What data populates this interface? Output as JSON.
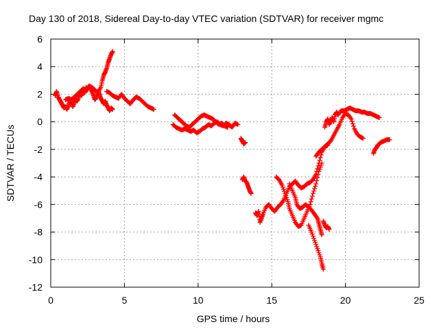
{
  "chart_data": {
    "type": "scatter",
    "title": "Day 130 of 2018, Sidereal Day-to-day VTEC variation (SDTVAR) for receiver mgmc",
    "xlabel": "GPS time / hours",
    "ylabel": "SDTVAR / TECUs",
    "xlim": [
      0,
      25
    ],
    "ylim": [
      -12,
      6
    ],
    "xticks": [
      0,
      5,
      10,
      15,
      20,
      25
    ],
    "yticks": [
      -12,
      -10,
      -8,
      -6,
      -4,
      -2,
      0,
      2,
      4,
      6
    ],
    "grid": true,
    "marker": "plus",
    "color": "#ff0000",
    "series": [
      {
        "points": [
          [
            0.3,
            1.9
          ],
          [
            0.4,
            2.2
          ],
          [
            0.5,
            1.8
          ],
          [
            0.6,
            1.6
          ],
          [
            0.7,
            1.4
          ],
          [
            0.8,
            1.2
          ],
          [
            0.9,
            1.0
          ],
          [
            1.0,
            1.1
          ],
          [
            1.1,
            0.9
          ],
          [
            1.2,
            1.2
          ],
          [
            1.3,
            1.5
          ],
          [
            1.4,
            1.3
          ],
          [
            1.5,
            1.1
          ],
          [
            1.6,
            1.4
          ],
          [
            1.7,
            1.6
          ],
          [
            1.8,
            1.5
          ],
          [
            1.9,
            1.8
          ],
          [
            2.0,
            2.1
          ],
          [
            2.1,
            1.9
          ],
          [
            2.2,
            2.3
          ],
          [
            2.3,
            2.1
          ],
          [
            2.4,
            2.5
          ],
          [
            2.5,
            2.3
          ],
          [
            2.6,
            2.6
          ],
          [
            2.7,
            2.4
          ],
          [
            2.8,
            2.2
          ],
          [
            2.9,
            1.9
          ],
          [
            3.0,
            1.6
          ],
          [
            3.1,
            1.8
          ],
          [
            3.2,
            2.2
          ],
          [
            3.3,
            2.0
          ],
          [
            3.4,
            1.7
          ],
          [
            3.5,
            1.5
          ],
          [
            3.6,
            1.3
          ],
          [
            3.7,
            1.5
          ],
          [
            3.8,
            1.2
          ],
          [
            3.9,
            1.0
          ],
          [
            4.0,
            0.8
          ],
          [
            4.1,
            1.0
          ],
          [
            4.2,
            0.9
          ]
        ]
      },
      {
        "points": [
          [
            1.0,
            1.6
          ],
          [
            1.2,
            1.7
          ],
          [
            1.4,
            1.6
          ],
          [
            1.6,
            1.8
          ],
          [
            1.8,
            2.0
          ],
          [
            2.0,
            2.2
          ],
          [
            2.2,
            2.4
          ],
          [
            2.4,
            2.3
          ],
          [
            2.6,
            2.6
          ],
          [
            2.8,
            2.5
          ],
          [
            3.0,
            2.3
          ],
          [
            3.2,
            2.1
          ],
          [
            3.4,
            2.5
          ],
          [
            3.5,
            3.0
          ],
          [
            3.6,
            3.4
          ],
          [
            3.7,
            3.6
          ],
          [
            3.8,
            3.9
          ],
          [
            3.9,
            4.3
          ],
          [
            4.0,
            4.6
          ],
          [
            4.1,
            4.9
          ],
          [
            4.2,
            5.1
          ]
        ]
      },
      {
        "points": [
          [
            3.8,
            2.2
          ],
          [
            4.0,
            2.1
          ],
          [
            4.2,
            1.9
          ],
          [
            4.4,
            1.8
          ],
          [
            4.6,
            1.7
          ],
          [
            4.8,
            2.0
          ],
          [
            5.0,
            1.7
          ],
          [
            5.2,
            1.5
          ],
          [
            5.4,
            1.3
          ],
          [
            5.6,
            1.6
          ],
          [
            5.8,
            1.8
          ],
          [
            6.0,
            1.7
          ],
          [
            6.2,
            1.5
          ],
          [
            6.4,
            1.3
          ],
          [
            6.6,
            1.1
          ],
          [
            6.8,
            1.0
          ],
          [
            7.0,
            0.9
          ]
        ]
      },
      {
        "points": [
          [
            8.3,
            -0.2
          ],
          [
            8.5,
            -0.4
          ],
          [
            8.7,
            -0.5
          ],
          [
            8.9,
            -0.6
          ],
          [
            9.1,
            -0.5
          ],
          [
            9.3,
            -0.6
          ],
          [
            9.5,
            -0.7
          ],
          [
            9.7,
            -0.6
          ],
          [
            9.9,
            -0.8
          ],
          [
            10.1,
            -0.7
          ],
          [
            10.3,
            -0.5
          ],
          [
            10.5,
            -0.4
          ],
          [
            10.7,
            -0.2
          ],
          [
            10.9,
            -0.3
          ],
          [
            11.1,
            -0.1
          ],
          [
            11.3,
            0.0
          ],
          [
            11.5,
            -0.2
          ],
          [
            11.7,
            -0.3
          ],
          [
            11.9,
            -0.1
          ],
          [
            12.1,
            -0.2
          ],
          [
            12.3,
            -0.4
          ],
          [
            12.5,
            -0.1
          ],
          [
            12.7,
            -0.2
          ]
        ]
      },
      {
        "points": [
          [
            8.4,
            0.5
          ],
          [
            8.6,
            0.3
          ],
          [
            8.8,
            0.1
          ],
          [
            9.0,
            -0.1
          ],
          [
            9.2,
            -0.3
          ],
          [
            9.4,
            -0.4
          ],
          [
            9.6,
            -0.2
          ],
          [
            9.8,
            0.0
          ],
          [
            10.0,
            0.2
          ],
          [
            10.2,
            0.4
          ],
          [
            10.4,
            0.5
          ],
          [
            10.6,
            0.4
          ],
          [
            10.8,
            0.3
          ],
          [
            11.0,
            0.2
          ],
          [
            11.2,
            0.0
          ],
          [
            11.4,
            -0.2
          ],
          [
            11.6,
            -0.1
          ],
          [
            11.8,
            -0.3
          ],
          [
            12.0,
            -0.4
          ]
        ]
      },
      {
        "points": [
          [
            12.9,
            -1.2
          ],
          [
            13.0,
            -1.4
          ],
          [
            13.1,
            -1.6
          ],
          [
            13.2,
            -1.5
          ]
        ]
      },
      {
        "points": [
          [
            13.0,
            -4.2
          ],
          [
            13.1,
            -4.0
          ],
          [
            13.2,
            -4.3
          ],
          [
            13.3,
            -4.4
          ],
          [
            13.4,
            -4.7
          ],
          [
            13.5,
            -5.0
          ],
          [
            13.6,
            -5.2
          ]
        ]
      },
      {
        "points": [
          [
            13.9,
            -6.6
          ],
          [
            14.0,
            -6.8
          ],
          [
            14.1,
            -6.5
          ],
          [
            14.2,
            -7.3
          ],
          [
            14.3,
            -7.0
          ],
          [
            14.4,
            -6.7
          ],
          [
            14.6,
            -6.2
          ],
          [
            14.8,
            -6.0
          ],
          [
            15.0,
            -6.3
          ],
          [
            15.2,
            -6.5
          ],
          [
            15.4,
            -6.2
          ],
          [
            15.6,
            -6.0
          ],
          [
            15.8,
            -5.7
          ],
          [
            16.0,
            -5.2
          ],
          [
            16.2,
            -4.7
          ],
          [
            16.4,
            -4.5
          ],
          [
            16.6,
            -4.3
          ],
          [
            16.8,
            -4.6
          ],
          [
            17.0,
            -4.8
          ],
          [
            17.2,
            -4.7
          ],
          [
            17.4,
            -4.5
          ],
          [
            17.6,
            -4.4
          ],
          [
            17.8,
            -4.2
          ],
          [
            18.0,
            -3.8
          ],
          [
            18.2,
            -3.0
          ],
          [
            18.4,
            -2.2
          ],
          [
            18.6,
            -1.8
          ],
          [
            18.8,
            -1.7
          ]
        ]
      },
      {
        "points": [
          [
            15.3,
            -4.0
          ],
          [
            15.5,
            -4.2
          ],
          [
            15.7,
            -4.6
          ],
          [
            15.9,
            -5.2
          ],
          [
            16.1,
            -5.8
          ],
          [
            16.2,
            -6.3
          ],
          [
            16.4,
            -6.8
          ],
          [
            16.6,
            -7.3
          ],
          [
            16.8,
            -7.6
          ],
          [
            17.0,
            -7.5
          ],
          [
            17.2,
            -7.0
          ],
          [
            17.4,
            -6.5
          ],
          [
            17.6,
            -6.0
          ],
          [
            17.8,
            -5.2
          ],
          [
            18.0,
            -4.5
          ],
          [
            18.2,
            -3.6
          ],
          [
            18.4,
            -3.0
          ]
        ]
      },
      {
        "points": [
          [
            16.2,
            -4.5
          ],
          [
            16.4,
            -5.0
          ],
          [
            16.6,
            -5.5
          ],
          [
            16.7,
            -6.0
          ],
          [
            16.9,
            -6.3
          ],
          [
            17.1,
            -6.2
          ],
          [
            17.3,
            -6.0
          ],
          [
            17.5,
            -6.2
          ],
          [
            17.7,
            -6.4
          ],
          [
            17.9,
            -6.7
          ],
          [
            18.1,
            -7.0
          ],
          [
            18.2,
            -7.4
          ],
          [
            18.3,
            -7.8
          ],
          [
            18.4,
            -8.2
          ]
        ]
      },
      {
        "points": [
          [
            17.5,
            -7.5
          ],
          [
            17.7,
            -8.0
          ],
          [
            17.9,
            -8.6
          ],
          [
            18.1,
            -9.2
          ],
          [
            18.3,
            -9.8
          ],
          [
            18.4,
            -10.3
          ],
          [
            18.5,
            -10.7
          ]
        ]
      },
      {
        "points": [
          [
            18.5,
            -7.2
          ],
          [
            18.6,
            -7.5
          ],
          [
            18.7,
            -7.7
          ],
          [
            18.8,
            -7.6
          ],
          [
            18.9,
            -7.8
          ]
        ]
      },
      {
        "points": [
          [
            18.0,
            -2.5
          ],
          [
            18.2,
            -2.2
          ],
          [
            18.4,
            -2.0
          ],
          [
            18.6,
            -1.8
          ],
          [
            18.8,
            -1.6
          ],
          [
            19.0,
            -1.4
          ],
          [
            19.2,
            -1.0
          ],
          [
            19.4,
            -0.6
          ],
          [
            19.6,
            -0.2
          ],
          [
            19.8,
            0.3
          ],
          [
            20.0,
            0.6
          ],
          [
            20.2,
            0.5
          ],
          [
            20.4,
            0.2
          ],
          [
            20.6,
            -0.5
          ],
          [
            20.8,
            -0.9
          ],
          [
            21.0,
            -1.1
          ],
          [
            21.2,
            -1.2
          ]
        ]
      },
      {
        "points": [
          [
            18.6,
            -0.4
          ],
          [
            18.7,
            0.0
          ],
          [
            18.8,
            0.2
          ],
          [
            18.9,
            -0.2
          ],
          [
            19.0,
            0.1
          ],
          [
            19.1,
            0.3
          ],
          [
            19.2,
            0.0
          ],
          [
            19.3,
            0.5
          ],
          [
            19.4,
            0.7
          ],
          [
            19.5,
            0.5
          ],
          [
            19.7,
            0.8
          ],
          [
            19.9,
            0.8
          ],
          [
            20.1,
            0.9
          ],
          [
            20.3,
            1.0
          ],
          [
            20.5,
            0.9
          ],
          [
            20.7,
            0.8
          ],
          [
            20.9,
            0.8
          ],
          [
            21.1,
            0.7
          ],
          [
            21.3,
            0.7
          ],
          [
            21.5,
            0.6
          ],
          [
            21.7,
            0.6
          ],
          [
            21.9,
            0.5
          ],
          [
            22.1,
            0.4
          ],
          [
            22.3,
            0.3
          ]
        ]
      },
      {
        "points": [
          [
            21.9,
            -2.3
          ],
          [
            22.0,
            -2.0
          ],
          [
            22.1,
            -1.9
          ],
          [
            22.2,
            -1.7
          ],
          [
            22.3,
            -1.6
          ],
          [
            22.4,
            -1.5
          ],
          [
            22.6,
            -1.4
          ],
          [
            22.8,
            -1.3
          ],
          [
            23.0,
            -1.3
          ]
        ]
      }
    ]
  }
}
